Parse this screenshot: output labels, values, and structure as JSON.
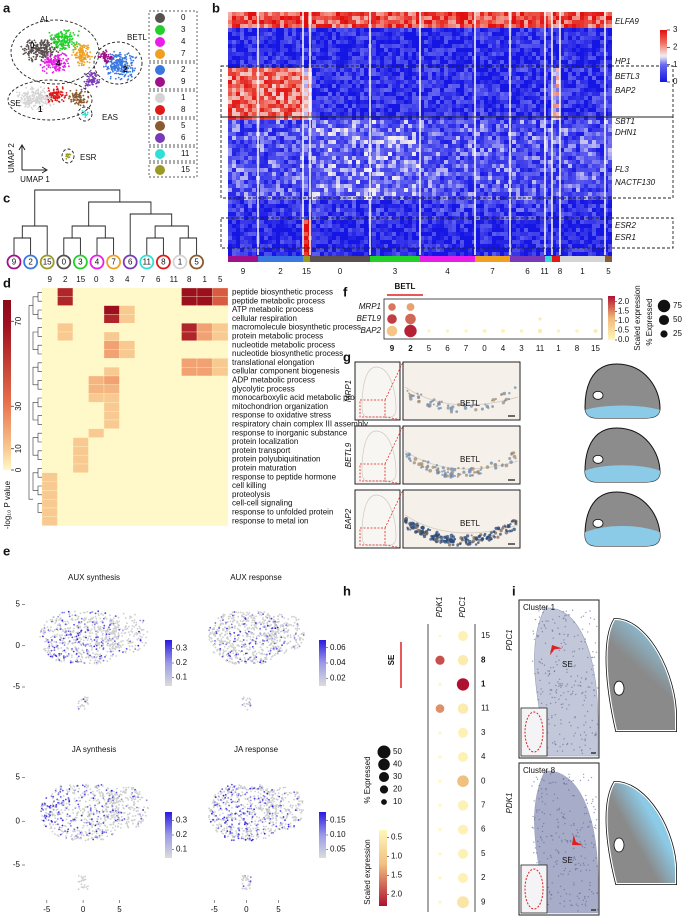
{
  "a": {
    "label": "a",
    "regions": [
      "AL",
      "BETL",
      "SE",
      "EAS",
      "ESR"
    ],
    "cluster_tags": [
      "0",
      "4",
      "2",
      "1"
    ],
    "axis_x": "UMAP 1",
    "axis_y": "UMAP 2",
    "legend": [
      [
        {
          "name": "0",
          "color": "#5a5050"
        },
        {
          "name": "3",
          "color": "#22d02a"
        },
        {
          "name": "4",
          "color": "#e81ee8"
        },
        {
          "name": "7",
          "color": "#f0a020"
        }
      ],
      [
        {
          "name": "2",
          "color": "#3a78e0"
        },
        {
          "name": "9",
          "color": "#a0108a"
        }
      ],
      [
        {
          "name": "1",
          "color": "#d4d4d4"
        },
        {
          "name": "8",
          "color": "#e01818"
        }
      ],
      [
        {
          "name": "5",
          "color": "#8a5a30"
        },
        {
          "name": "6",
          "color": "#7a3ab8"
        }
      ],
      [
        {
          "name": "11",
          "color": "#30e0d4"
        }
      ],
      [
        {
          "name": "15",
          "color": "#9a9a22"
        }
      ]
    ]
  },
  "b": {
    "label": "b",
    "genes": [
      "ELFA9",
      "HP1",
      "BETL3",
      "BAP2",
      "SBT1",
      "DHN1",
      "FL3",
      "NACTF130",
      "ESR2",
      "ESR1"
    ],
    "clusters": [
      "9",
      "2",
      "15",
      "0",
      "3",
      "4",
      "7",
      "6",
      "11",
      "8",
      "1",
      "5"
    ],
    "colorbar": {
      "ticks": [
        0,
        1,
        2,
        3
      ],
      "lim": [
        0,
        3
      ]
    }
  },
  "c": {
    "label": "c",
    "leaves": [
      "9",
      "2",
      "15",
      "0",
      "3",
      "4",
      "7",
      "6",
      "11",
      "8",
      "1",
      "5"
    ]
  },
  "d": {
    "label": "d",
    "columns": [
      "9",
      "2",
      "15",
      "0",
      "3",
      "4",
      "7",
      "6",
      "11",
      "8",
      "1",
      "5"
    ],
    "terms": [
      "peptide biosynthetic process",
      "peptide metabolic process",
      "ATP metabolic process",
      "cellular respiration",
      "macromolecule biosynthetic process",
      "protein metabolic process",
      "nucleotide metabolic process",
      "nucleotide biosynthetic process",
      "translational elongation",
      "cellular component biogenesis",
      "ADP metabolic process",
      "glycolytic process",
      "monocarboxylic acid metabolic process",
      "mitochondrion organization",
      "response to oxidative stress",
      "respiratory chain complex III assembly",
      "response to inorganic substance",
      "protein localization",
      "protein transport",
      "protein polyubiquitination",
      "protein maturation",
      "response to peptide hormone",
      "cell killing",
      "proteolysis",
      "cell-cell signaling",
      "response to unfolded protein",
      "response to metal ion"
    ],
    "values": [
      [
        0,
        60,
        0,
        0,
        0,
        0,
        0,
        0,
        0,
        70,
        70,
        40
      ],
      [
        0,
        60,
        0,
        0,
        0,
        0,
        0,
        0,
        0,
        70,
        70,
        40
      ],
      [
        0,
        0,
        0,
        0,
        70,
        10,
        0,
        0,
        0,
        0,
        0,
        0
      ],
      [
        0,
        0,
        0,
        0,
        60,
        10,
        0,
        0,
        0,
        0,
        0,
        0
      ],
      [
        0,
        10,
        0,
        0,
        0,
        0,
        0,
        0,
        0,
        60,
        20,
        10
      ],
      [
        0,
        10,
        0,
        0,
        10,
        0,
        0,
        0,
        0,
        60,
        20,
        10
      ],
      [
        0,
        0,
        0,
        0,
        20,
        10,
        0,
        0,
        0,
        0,
        0,
        0
      ],
      [
        0,
        0,
        0,
        0,
        20,
        10,
        0,
        0,
        0,
        0,
        0,
        0
      ],
      [
        0,
        0,
        0,
        0,
        0,
        0,
        0,
        0,
        0,
        20,
        20,
        10
      ],
      [
        0,
        0,
        0,
        0,
        10,
        0,
        0,
        0,
        0,
        20,
        20,
        10
      ],
      [
        0,
        0,
        0,
        15,
        20,
        0,
        0,
        0,
        0,
        0,
        0,
        0
      ],
      [
        0,
        0,
        0,
        15,
        15,
        0,
        0,
        0,
        0,
        0,
        0,
        0
      ],
      [
        0,
        0,
        0,
        10,
        10,
        0,
        0,
        0,
        0,
        0,
        0,
        0
      ],
      [
        0,
        0,
        0,
        0,
        10,
        0,
        0,
        0,
        0,
        0,
        0,
        0
      ],
      [
        0,
        0,
        0,
        0,
        10,
        0,
        0,
        0,
        0,
        0,
        0,
        0
      ],
      [
        0,
        0,
        0,
        0,
        10,
        0,
        0,
        0,
        0,
        0,
        0,
        0
      ],
      [
        0,
        0,
        0,
        10,
        0,
        0,
        0,
        0,
        0,
        0,
        0,
        0
      ],
      [
        0,
        0,
        10,
        0,
        0,
        0,
        0,
        0,
        0,
        0,
        0,
        0
      ],
      [
        0,
        0,
        10,
        0,
        0,
        0,
        0,
        0,
        0,
        0,
        0,
        0
      ],
      [
        0,
        0,
        10,
        0,
        0,
        0,
        0,
        0,
        0,
        0,
        0,
        0
      ],
      [
        0,
        0,
        10,
        0,
        0,
        0,
        0,
        0,
        0,
        0,
        0,
        0
      ],
      [
        10,
        0,
        0,
        0,
        0,
        0,
        0,
        0,
        0,
        0,
        0,
        0
      ],
      [
        10,
        0,
        0,
        0,
        0,
        0,
        0,
        0,
        0,
        0,
        0,
        0
      ],
      [
        10,
        0,
        0,
        0,
        0,
        0,
        0,
        0,
        0,
        0,
        0,
        0
      ],
      [
        10,
        0,
        0,
        0,
        0,
        0,
        0,
        0,
        0,
        0,
        0,
        0
      ],
      [
        10,
        0,
        0,
        0,
        0,
        0,
        0,
        0,
        0,
        0,
        0,
        0
      ],
      [
        10,
        0,
        0,
        0,
        0,
        0,
        0,
        0,
        0,
        0,
        0,
        0
      ]
    ],
    "colorbar": {
      "title": "-log₁₀ P value",
      "ticks": [
        0,
        10,
        30,
        70
      ],
      "lim": [
        0,
        80
      ]
    }
  },
  "e": {
    "label": "e",
    "xticks": [
      -5,
      0,
      5
    ],
    "yticks": [
      -5,
      0,
      5
    ],
    "xlim": [
      -8,
      11
    ],
    "ylim": [
      -9,
      7
    ],
    "plots": [
      {
        "title": "AUX synthesis",
        "cticks": [
          0.1,
          0.2,
          0.3
        ],
        "clim": [
          0.04,
          0.36
        ]
      },
      {
        "title": "AUX response",
        "cticks": [
          0.02,
          0.04,
          0.06
        ],
        "clim": [
          0.01,
          0.07
        ]
      },
      {
        "title": "JA synthesis",
        "cticks": [
          0.1,
          0.2,
          0.3
        ],
        "clim": [
          0.04,
          0.36
        ]
      },
      {
        "title": "JA response",
        "cticks": [
          0.05,
          {
            "value": 0.1,
            "label": "0.10"
          },
          0.15
        ],
        "clim": [
          0.02,
          0.18
        ]
      }
    ]
  },
  "f": {
    "label": "f",
    "group": "BETL",
    "highlighted": [
      "9",
      "2"
    ],
    "genes": [
      "MRP1",
      "BETL9",
      "BAP2"
    ],
    "clusters": [
      "9",
      "2",
      "5",
      "6",
      "7",
      "0",
      "4",
      "3",
      "11",
      "1",
      "8",
      "15"
    ],
    "expression": [
      [
        1.6,
        1.3,
        0,
        0,
        0,
        0,
        0,
        0,
        0,
        0,
        0,
        0
      ],
      [
        2.0,
        1.7,
        0,
        0,
        0,
        0,
        0,
        0,
        0.2,
        0,
        0,
        0
      ],
      [
        0.9,
        2.2,
        0.1,
        0.1,
        0.1,
        0.1,
        0.1,
        0.1,
        0.2,
        0.1,
        0.1,
        0.2
      ]
    ],
    "pct": [
      [
        28,
        30,
        0,
        0,
        0,
        0,
        0,
        0,
        0,
        0,
        0,
        0
      ],
      [
        45,
        55,
        0,
        0,
        0,
        0,
        0,
        0,
        5,
        0,
        0,
        0
      ],
      [
        55,
        75,
        5,
        5,
        5,
        8,
        8,
        6,
        10,
        6,
        6,
        8
      ]
    ],
    "color_title": "Scaled expression",
    "color_ticks": [
      {
        "value": 0,
        "label": "0.0"
      },
      0.5,
      {
        "value": 1,
        "label": "1.0"
      },
      1.5,
      {
        "value": 2,
        "label": "2.0"
      }
    ],
    "clim": [
      0,
      2.3
    ],
    "size_title": "% Expressed",
    "size_ticks": [
      25,
      50,
      75
    ]
  },
  "g": {
    "label": "g",
    "genes": [
      "MRP1",
      "BETL9",
      "BAP2"
    ],
    "region": "BETL"
  },
  "h": {
    "label": "h",
    "genes": [
      "PDK1",
      "PDC1"
    ],
    "clusters": [
      "15",
      "8",
      "1",
      "11",
      "3",
      "4",
      "0",
      "7",
      "6",
      "5",
      "2",
      "9"
    ],
    "highlighted": [
      "8",
      "1"
    ],
    "group": "SE",
    "expression": [
      [
        0.3,
        1.9,
        0.3,
        1.5,
        0.3,
        0.3,
        0.3,
        0.3,
        0.3,
        0.3,
        0.3,
        0.3
      ],
      [
        0.4,
        0.5,
        2.3,
        0.5,
        0.4,
        0.4,
        1.2,
        0.4,
        0.4,
        0.4,
        0.4,
        0.6
      ]
    ],
    "pct": [
      [
        2,
        25,
        3,
        22,
        3,
        3,
        3,
        3,
        3,
        3,
        3,
        3
      ],
      [
        30,
        32,
        45,
        33,
        30,
        30,
        40,
        32,
        30,
        30,
        30,
        42
      ]
    ],
    "size_title": "% Expressed",
    "size_ticks": [
      50,
      40,
      30,
      20,
      10
    ],
    "color_title": "Scaled expression",
    "color_ticks": [
      0.5,
      {
        "value": 1,
        "label": "1.0"
      },
      1.5,
      {
        "value": 2,
        "label": "2.0"
      }
    ],
    "clim": [
      0.3,
      2.3
    ]
  },
  "i": {
    "label": "i",
    "rows": [
      {
        "gene": "PDC1",
        "cluster": "Cluster 1",
        "region": "SE"
      },
      {
        "gene": "PDK1",
        "cluster": "Cluster 8",
        "region": "SE"
      }
    ]
  }
}
